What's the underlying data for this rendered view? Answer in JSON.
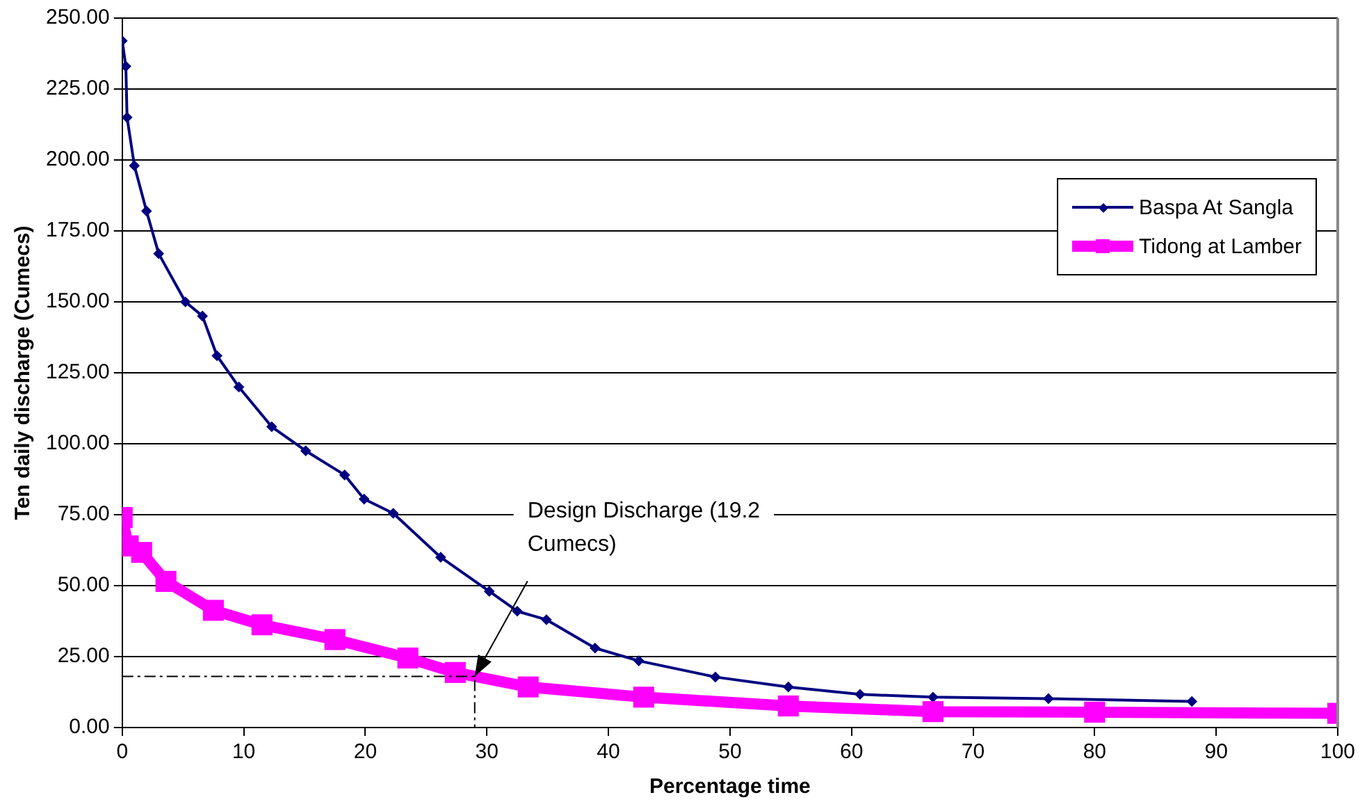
{
  "chart_data": {
    "type": "line",
    "xlabel": "Percentage time",
    "ylabel": "Ten daily discharge (Cumecs)",
    "xlim": [
      0,
      100
    ],
    "xticks": [
      0,
      10,
      20,
      30,
      40,
      50,
      60,
      70,
      80,
      90,
      100
    ],
    "ylim": [
      0,
      250
    ],
    "yticks": [
      {
        "value": 0,
        "label": "0.00"
      },
      {
        "value": 25,
        "label": "25.00"
      },
      {
        "value": 50,
        "label": "50.00"
      },
      {
        "value": 75,
        "label": "75.00"
      },
      {
        "value": 100,
        "label": "100.00"
      },
      {
        "value": 125,
        "label": "125.00"
      },
      {
        "value": 150,
        "label": "150.00"
      },
      {
        "value": 175,
        "label": "175.00"
      },
      {
        "value": 200,
        "label": "200.00"
      },
      {
        "value": 225,
        "label": "225.00"
      },
      {
        "value": 250,
        "label": "250.00"
      }
    ],
    "grid": "y",
    "legend": "right",
    "series": [
      {
        "name": "Baspa At Sangla",
        "color": "#000080",
        "marker": "diamond",
        "x": [
          0,
          0.3,
          0.4,
          1,
          2,
          3,
          5.2,
          6.6,
          7.8,
          9.6,
          12.3,
          15.1,
          18.3,
          19.9,
          22.3,
          26.2,
          30.2,
          32.5,
          34.9,
          38.9,
          42.5,
          48.8,
          54.8,
          60.7,
          66.7,
          76.2,
          88
        ],
        "values": [
          242,
          233,
          215,
          198,
          182,
          167,
          150,
          145,
          131,
          120,
          106,
          97.5,
          89,
          80.5,
          75.5,
          60,
          48,
          41,
          38,
          28,
          23.5,
          17.8,
          14.3,
          11.7,
          10.7,
          10.2,
          9.2
        ]
      },
      {
        "name": "Tidong at Lamber",
        "color": "#ff00ff",
        "marker": "square",
        "x": [
          0,
          0.5,
          1.6,
          3.6,
          7.5,
          11.5,
          17.5,
          23.5,
          27.4,
          33.4,
          42.9,
          54.8,
          66.7,
          80,
          100
        ],
        "values": [
          74,
          64,
          61.7,
          51.5,
          41.3,
          36.2,
          31,
          24.5,
          19.4,
          14.3,
          10.7,
          7.6,
          5.6,
          5.4,
          5
        ]
      },
      {
        "type": "line",
        "color": "#000000",
        "marker": "none",
        "line_style": "dashed",
        "x": [
          0,
          29,
          29
        ],
        "values": [
          18,
          18,
          0
        ]
      }
    ],
    "annotations": [
      {
        "text": "Design Discharge (19.2 Cumecs)",
        "x": 29,
        "y": 18
      }
    ]
  }
}
